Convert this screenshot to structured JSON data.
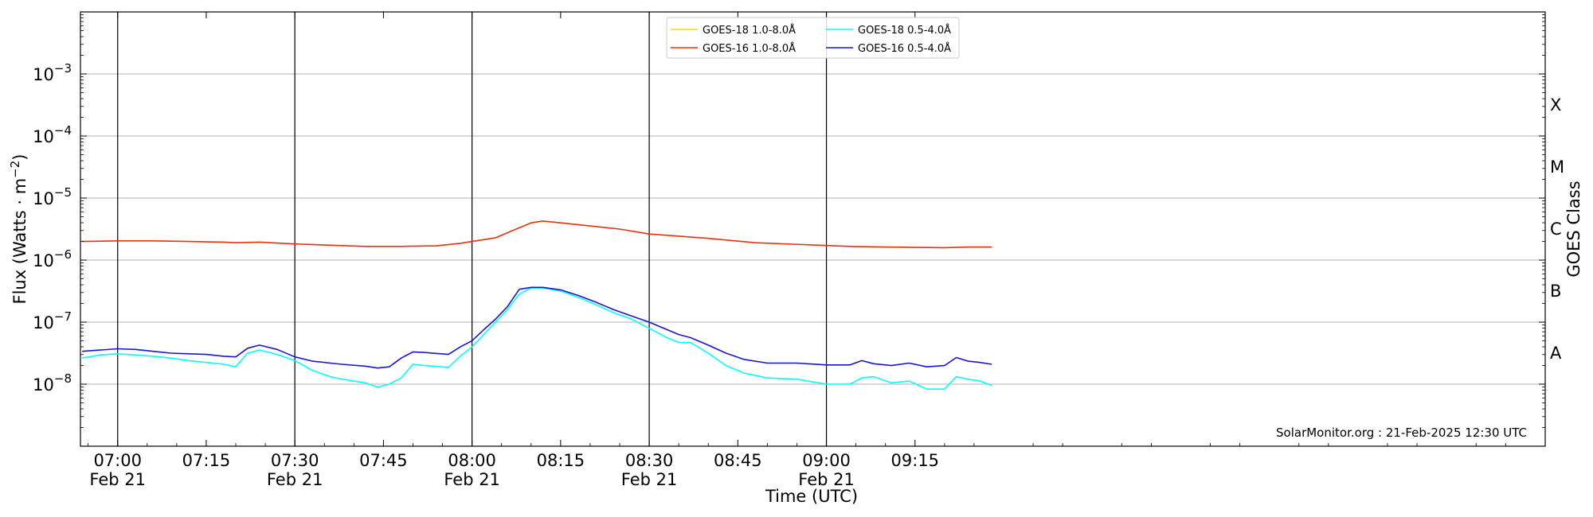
{
  "chart_data": {
    "type": "line",
    "xlabel": "Time (UTC)",
    "ylabel_main": "Flux (Watts · m",
    "ylabel_sup": "−2",
    "ylabel_close": ")",
    "y2label": "GOES Class",
    "credit": "SolarMonitor.org : 21-Feb-2025 12:30 UTC",
    "x_range_minutes": [
      -6.3,
      241.7
    ],
    "x_start_time": "06:54",
    "y_scale": "log",
    "ylim_log10": [
      -9,
      -2
    ],
    "grid": "horizontal",
    "legend_placement": "top-center",
    "x_ticks": [
      {
        "minute": 0,
        "time": "07:00",
        "date": "Feb 21",
        "major": true
      },
      {
        "minute": 15,
        "time": "07:15",
        "date": "",
        "major": false
      },
      {
        "minute": 30,
        "time": "07:30",
        "date": "Feb 21",
        "major": true
      },
      {
        "minute": 45,
        "time": "07:45",
        "date": "",
        "major": false
      },
      {
        "minute": 60,
        "time": "08:00",
        "date": "Feb 21",
        "major": true
      },
      {
        "minute": 75,
        "time": "08:15",
        "date": "",
        "major": false
      },
      {
        "minute": 90,
        "time": "08:30",
        "date": "Feb 21",
        "major": true
      },
      {
        "minute": 105,
        "time": "08:45",
        "date": "",
        "major": false
      },
      {
        "minute": 120,
        "time": "09:00",
        "date": "Feb 21",
        "major": true
      },
      {
        "minute": 135,
        "time": "09:15",
        "date": "",
        "major": false
      }
    ],
    "y_ticks": [
      {
        "exp": -8,
        "base": "10",
        "power": "−8"
      },
      {
        "exp": -7,
        "base": "10",
        "power": "−7"
      },
      {
        "exp": -6,
        "base": "10",
        "power": "−6"
      },
      {
        "exp": -5,
        "base": "10",
        "power": "−5"
      },
      {
        "exp": -4,
        "base": "10",
        "power": "−4"
      },
      {
        "exp": -3,
        "base": "10",
        "power": "−3"
      }
    ],
    "goes_classes": [
      {
        "label": "A",
        "exp": -7.5
      },
      {
        "label": "B",
        "exp": -6.5
      },
      {
        "label": "C",
        "exp": -5.5
      },
      {
        "label": "M",
        "exp": -4.5
      },
      {
        "label": "X",
        "exp": -3.5
      }
    ],
    "series": [
      {
        "name": "GOES-18 1.0-8.0Å",
        "color": "#ffd700",
        "points": []
      },
      {
        "name": "GOES-16 1.0-8.0Å",
        "color": "#e8320a",
        "points": [
          [
            -6,
            -5.7
          ],
          [
            0,
            -5.69
          ],
          [
            6,
            -5.69
          ],
          [
            12,
            -5.7
          ],
          [
            18,
            -5.71
          ],
          [
            20,
            -5.72
          ],
          [
            24,
            -5.71
          ],
          [
            30,
            -5.74
          ],
          [
            36,
            -5.76
          ],
          [
            42,
            -5.78
          ],
          [
            48,
            -5.78
          ],
          [
            54,
            -5.77
          ],
          [
            58,
            -5.73
          ],
          [
            60,
            -5.7
          ],
          [
            64,
            -5.64
          ],
          [
            68,
            -5.48
          ],
          [
            70,
            -5.4
          ],
          [
            72,
            -5.37
          ],
          [
            75,
            -5.4
          ],
          [
            80,
            -5.45
          ],
          [
            85,
            -5.5
          ],
          [
            90,
            -5.58
          ],
          [
            96,
            -5.62
          ],
          [
            100,
            -5.65
          ],
          [
            108,
            -5.72
          ],
          [
            116,
            -5.75
          ],
          [
            124,
            -5.78
          ],
          [
            130,
            -5.79
          ],
          [
            140,
            -5.8
          ],
          [
            144,
            -5.79
          ],
          [
            148,
            -5.79
          ]
        ]
      },
      {
        "name": "GOES-18 0.5-4.0Å",
        "color": "#00ffff",
        "points": [
          [
            -6,
            -7.58
          ],
          [
            -3,
            -7.53
          ],
          [
            0,
            -7.51
          ],
          [
            3,
            -7.53
          ],
          [
            6,
            -7.55
          ],
          [
            9,
            -7.58
          ],
          [
            12,
            -7.62
          ],
          [
            15,
            -7.65
          ],
          [
            18,
            -7.68
          ],
          [
            20,
            -7.72
          ],
          [
            22,
            -7.5
          ],
          [
            24,
            -7.45
          ],
          [
            27,
            -7.52
          ],
          [
            30,
            -7.62
          ],
          [
            33,
            -7.78
          ],
          [
            36,
            -7.88
          ],
          [
            38,
            -7.92
          ],
          [
            42,
            -7.98
          ],
          [
            44,
            -8.05
          ],
          [
            46,
            -8.0
          ],
          [
            48,
            -7.9
          ],
          [
            50,
            -7.68
          ],
          [
            52,
            -7.7
          ],
          [
            56,
            -7.73
          ],
          [
            58,
            -7.55
          ],
          [
            60,
            -7.4
          ],
          [
            62,
            -7.2
          ],
          [
            64,
            -7.0
          ],
          [
            66,
            -6.8
          ],
          [
            68,
            -6.55
          ],
          [
            70,
            -6.45
          ],
          [
            72,
            -6.45
          ],
          [
            75,
            -6.5
          ],
          [
            78,
            -6.6
          ],
          [
            81,
            -6.72
          ],
          [
            84,
            -6.85
          ],
          [
            87,
            -6.95
          ],
          [
            90,
            -7.1
          ],
          [
            93,
            -7.25
          ],
          [
            95,
            -7.33
          ],
          [
            97,
            -7.33
          ],
          [
            100,
            -7.5
          ],
          [
            103,
            -7.7
          ],
          [
            106,
            -7.82
          ],
          [
            110,
            -7.9
          ],
          [
            115,
            -7.92
          ],
          [
            120,
            -8.0
          ],
          [
            124,
            -8.0
          ],
          [
            126,
            -7.9
          ],
          [
            128,
            -7.88
          ],
          [
            131,
            -7.98
          ],
          [
            134,
            -7.95
          ],
          [
            137,
            -8.08
          ],
          [
            140,
            -8.08
          ],
          [
            142,
            -7.88
          ],
          [
            144,
            -7.92
          ],
          [
            146,
            -7.95
          ],
          [
            148,
            -8.02
          ]
        ]
      },
      {
        "name": "GOES-16 0.5-4.0Å",
        "color": "#1a14d6",
        "points": [
          [
            -6,
            -7.47
          ],
          [
            -3,
            -7.45
          ],
          [
            0,
            -7.43
          ],
          [
            3,
            -7.44
          ],
          [
            6,
            -7.47
          ],
          [
            9,
            -7.5
          ],
          [
            12,
            -7.51
          ],
          [
            15,
            -7.52
          ],
          [
            18,
            -7.55
          ],
          [
            20,
            -7.56
          ],
          [
            22,
            -7.42
          ],
          [
            24,
            -7.37
          ],
          [
            27,
            -7.44
          ],
          [
            30,
            -7.56
          ],
          [
            33,
            -7.63
          ],
          [
            36,
            -7.66
          ],
          [
            38,
            -7.68
          ],
          [
            42,
            -7.71
          ],
          [
            44,
            -7.74
          ],
          [
            46,
            -7.72
          ],
          [
            48,
            -7.58
          ],
          [
            50,
            -7.48
          ],
          [
            52,
            -7.49
          ],
          [
            56,
            -7.52
          ],
          [
            58,
            -7.4
          ],
          [
            60,
            -7.3
          ],
          [
            62,
            -7.12
          ],
          [
            64,
            -6.95
          ],
          [
            66,
            -6.75
          ],
          [
            68,
            -6.47
          ],
          [
            70,
            -6.44
          ],
          [
            72,
            -6.44
          ],
          [
            75,
            -6.48
          ],
          [
            78,
            -6.57
          ],
          [
            81,
            -6.68
          ],
          [
            84,
            -6.8
          ],
          [
            87,
            -6.9
          ],
          [
            90,
            -7.0
          ],
          [
            93,
            -7.12
          ],
          [
            95,
            -7.2
          ],
          [
            97,
            -7.25
          ],
          [
            100,
            -7.37
          ],
          [
            103,
            -7.5
          ],
          [
            106,
            -7.6
          ],
          [
            110,
            -7.66
          ],
          [
            115,
            -7.66
          ],
          [
            120,
            -7.69
          ],
          [
            124,
            -7.69
          ],
          [
            126,
            -7.62
          ],
          [
            128,
            -7.67
          ],
          [
            131,
            -7.7
          ],
          [
            134,
            -7.66
          ],
          [
            137,
            -7.72
          ],
          [
            140,
            -7.7
          ],
          [
            142,
            -7.57
          ],
          [
            144,
            -7.63
          ],
          [
            146,
            -7.65
          ],
          [
            148,
            -7.68
          ]
        ]
      }
    ]
  }
}
